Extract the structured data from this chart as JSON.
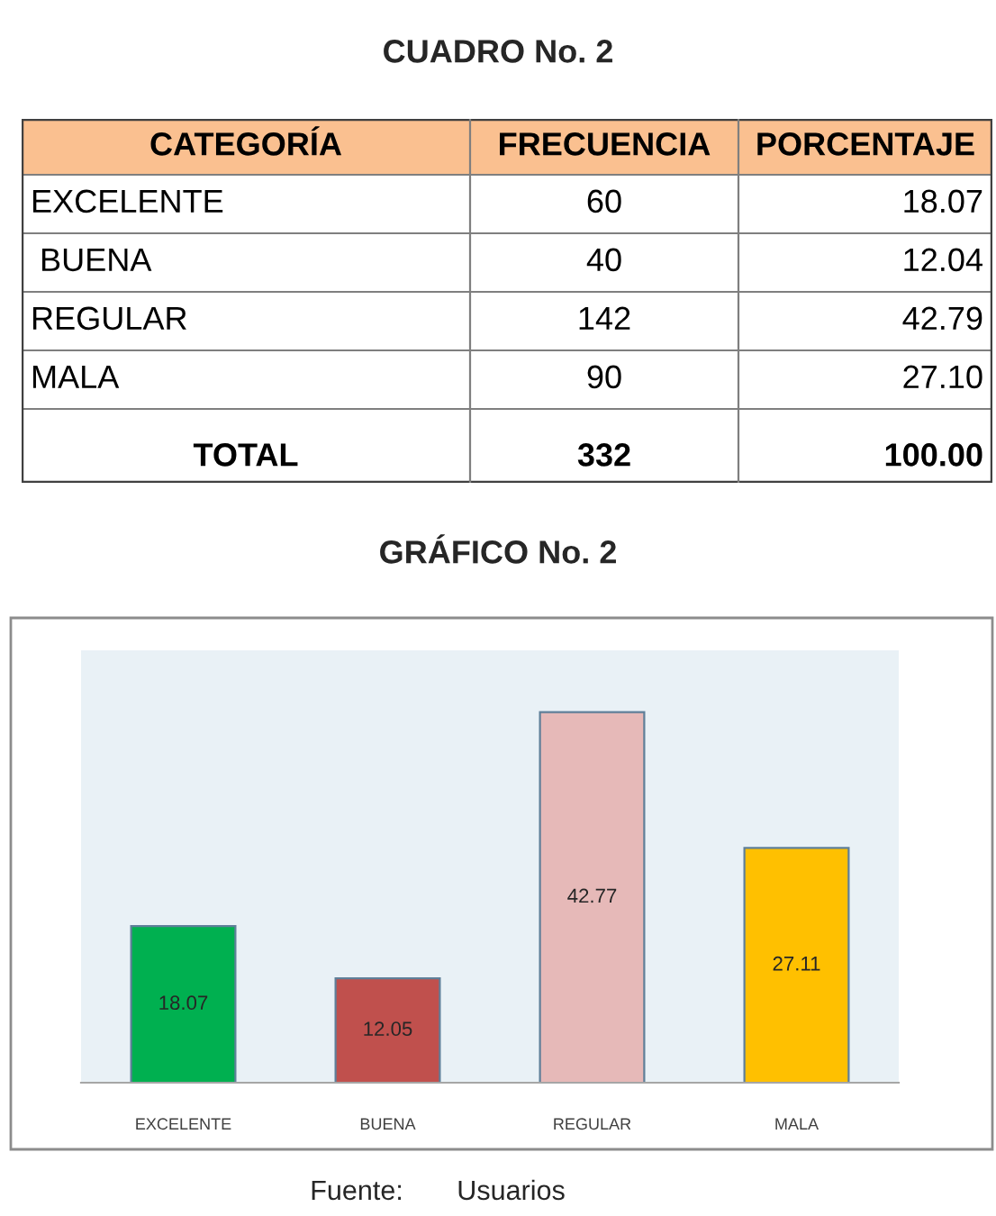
{
  "chart_data": [
    {
      "type": "other",
      "title": "CUADRO No. 2",
      "annotations": [
        "CATEGORÍA",
        "FRECUENCIA",
        "PORCENTAJE",
        "EXCELENTE",
        "60",
        "18.07",
        " BUENA",
        "40",
        "12.04",
        "REGULAR",
        "142",
        "42.79",
        "MALA",
        "90",
        "27.10",
        "TOTAL",
        "332",
        "100.00"
      ]
    },
    {
      "type": "bar",
      "title": "GRÁFICO No. 2",
      "categories": [
        "EXCELENTE",
        "BUENA",
        "REGULAR",
        "MALA"
      ],
      "values": [
        18.07,
        12.05,
        42.77,
        27.11
      ],
      "colors": [
        "#00b050",
        "#c0504d",
        "#e6b9b8",
        "#ffc000"
      ],
      "data_labels": true,
      "annotations": [
        "Fuente:       Usuarios"
      ]
    }
  ]
}
